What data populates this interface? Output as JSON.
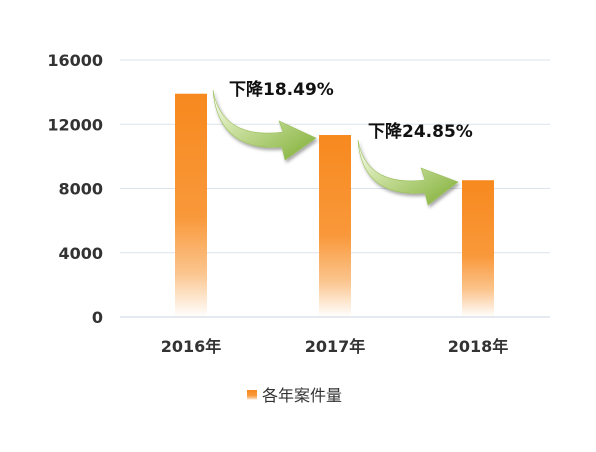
{
  "chart_data": {
    "type": "bar",
    "categories": [
      "2016年",
      "2017年",
      "2018年"
    ],
    "series": [
      {
        "name": "各年案件量",
        "values": [
          13900,
          11330,
          8515
        ],
        "color": "#F7891E"
      }
    ],
    "ylim": [
      0,
      16000
    ],
    "yticks": [
      0,
      4000,
      8000,
      12000,
      16000
    ],
    "yticks_labels": [
      "0",
      "4000",
      "8000",
      "12000",
      "16000"
    ],
    "grid": true,
    "legend": "bottom",
    "annotations": [
      {
        "text": "下降18.49%",
        "from": 0,
        "to": 1,
        "arrow_color": "#8DB83F"
      },
      {
        "text": "下降24.85%",
        "from": 1,
        "to": 2,
        "arrow_color": "#8DB83F"
      }
    ]
  }
}
